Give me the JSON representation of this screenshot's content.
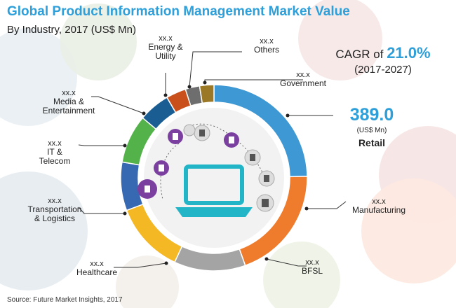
{
  "title": "Global Product Information Management Market Value",
  "subtitle": "By Industry, 2017 (US$ Mn)",
  "cagr": {
    "prefix": "CAGR of",
    "value": "21.0%",
    "period": "(2017-2027)"
  },
  "highlight": {
    "value": "389.0",
    "unit": "(US$ Mn)",
    "category": "Retail"
  },
  "source": "Source: Future Market Insights, 2017",
  "colors": {
    "accent": "#2e9fd8",
    "icon_purple": "#7b3fa0",
    "laptop": "#22b5c8"
  },
  "chart_data": {
    "type": "pie",
    "donut": true,
    "title": "Global Product Information Management Market Value",
    "subtitle": "By Industry, 2017 (US$ Mn)",
    "categories": [
      "Retail",
      "Manufacturing",
      "BFSL",
      "Healthcare",
      "Transportation & Logistics",
      "IT & Telecom",
      "Media & Entertainment",
      "Energy & Utility",
      "Others",
      "Government"
    ],
    "value_labels": [
      "389.0",
      "xx.x",
      "xx.x",
      "xx.x",
      "xx.x",
      "xx.x",
      "xx.x",
      "xx.x",
      "xx.x",
      "xx.x"
    ],
    "label_lines": [
      [
        "Retail"
      ],
      [
        "Manufacturing"
      ],
      [
        "BFSL"
      ],
      [
        "Healthcare"
      ],
      [
        "Transportation",
        "& Logistics"
      ],
      [
        "IT &",
        "Telecom"
      ],
      [
        "Media &",
        "Entertainment"
      ],
      [
        "Energy &",
        "Utility"
      ],
      [
        "Others"
      ],
      [
        "Government"
      ]
    ],
    "shares_pct": [
      25,
      20,
      12.5,
      12.5,
      8.5,
      8.5,
      5.5,
      3.5,
      2.5,
      2.5
    ],
    "colors": [
      "#3d98d3",
      "#ef7c2d",
      "#a4a4a4",
      "#f4b825",
      "#3769b3",
      "#54b24b",
      "#1a5d92",
      "#c94f1b",
      "#6e6e6e",
      "#9b7826"
    ],
    "start_category": "Retail",
    "direction": "clockwise"
  }
}
